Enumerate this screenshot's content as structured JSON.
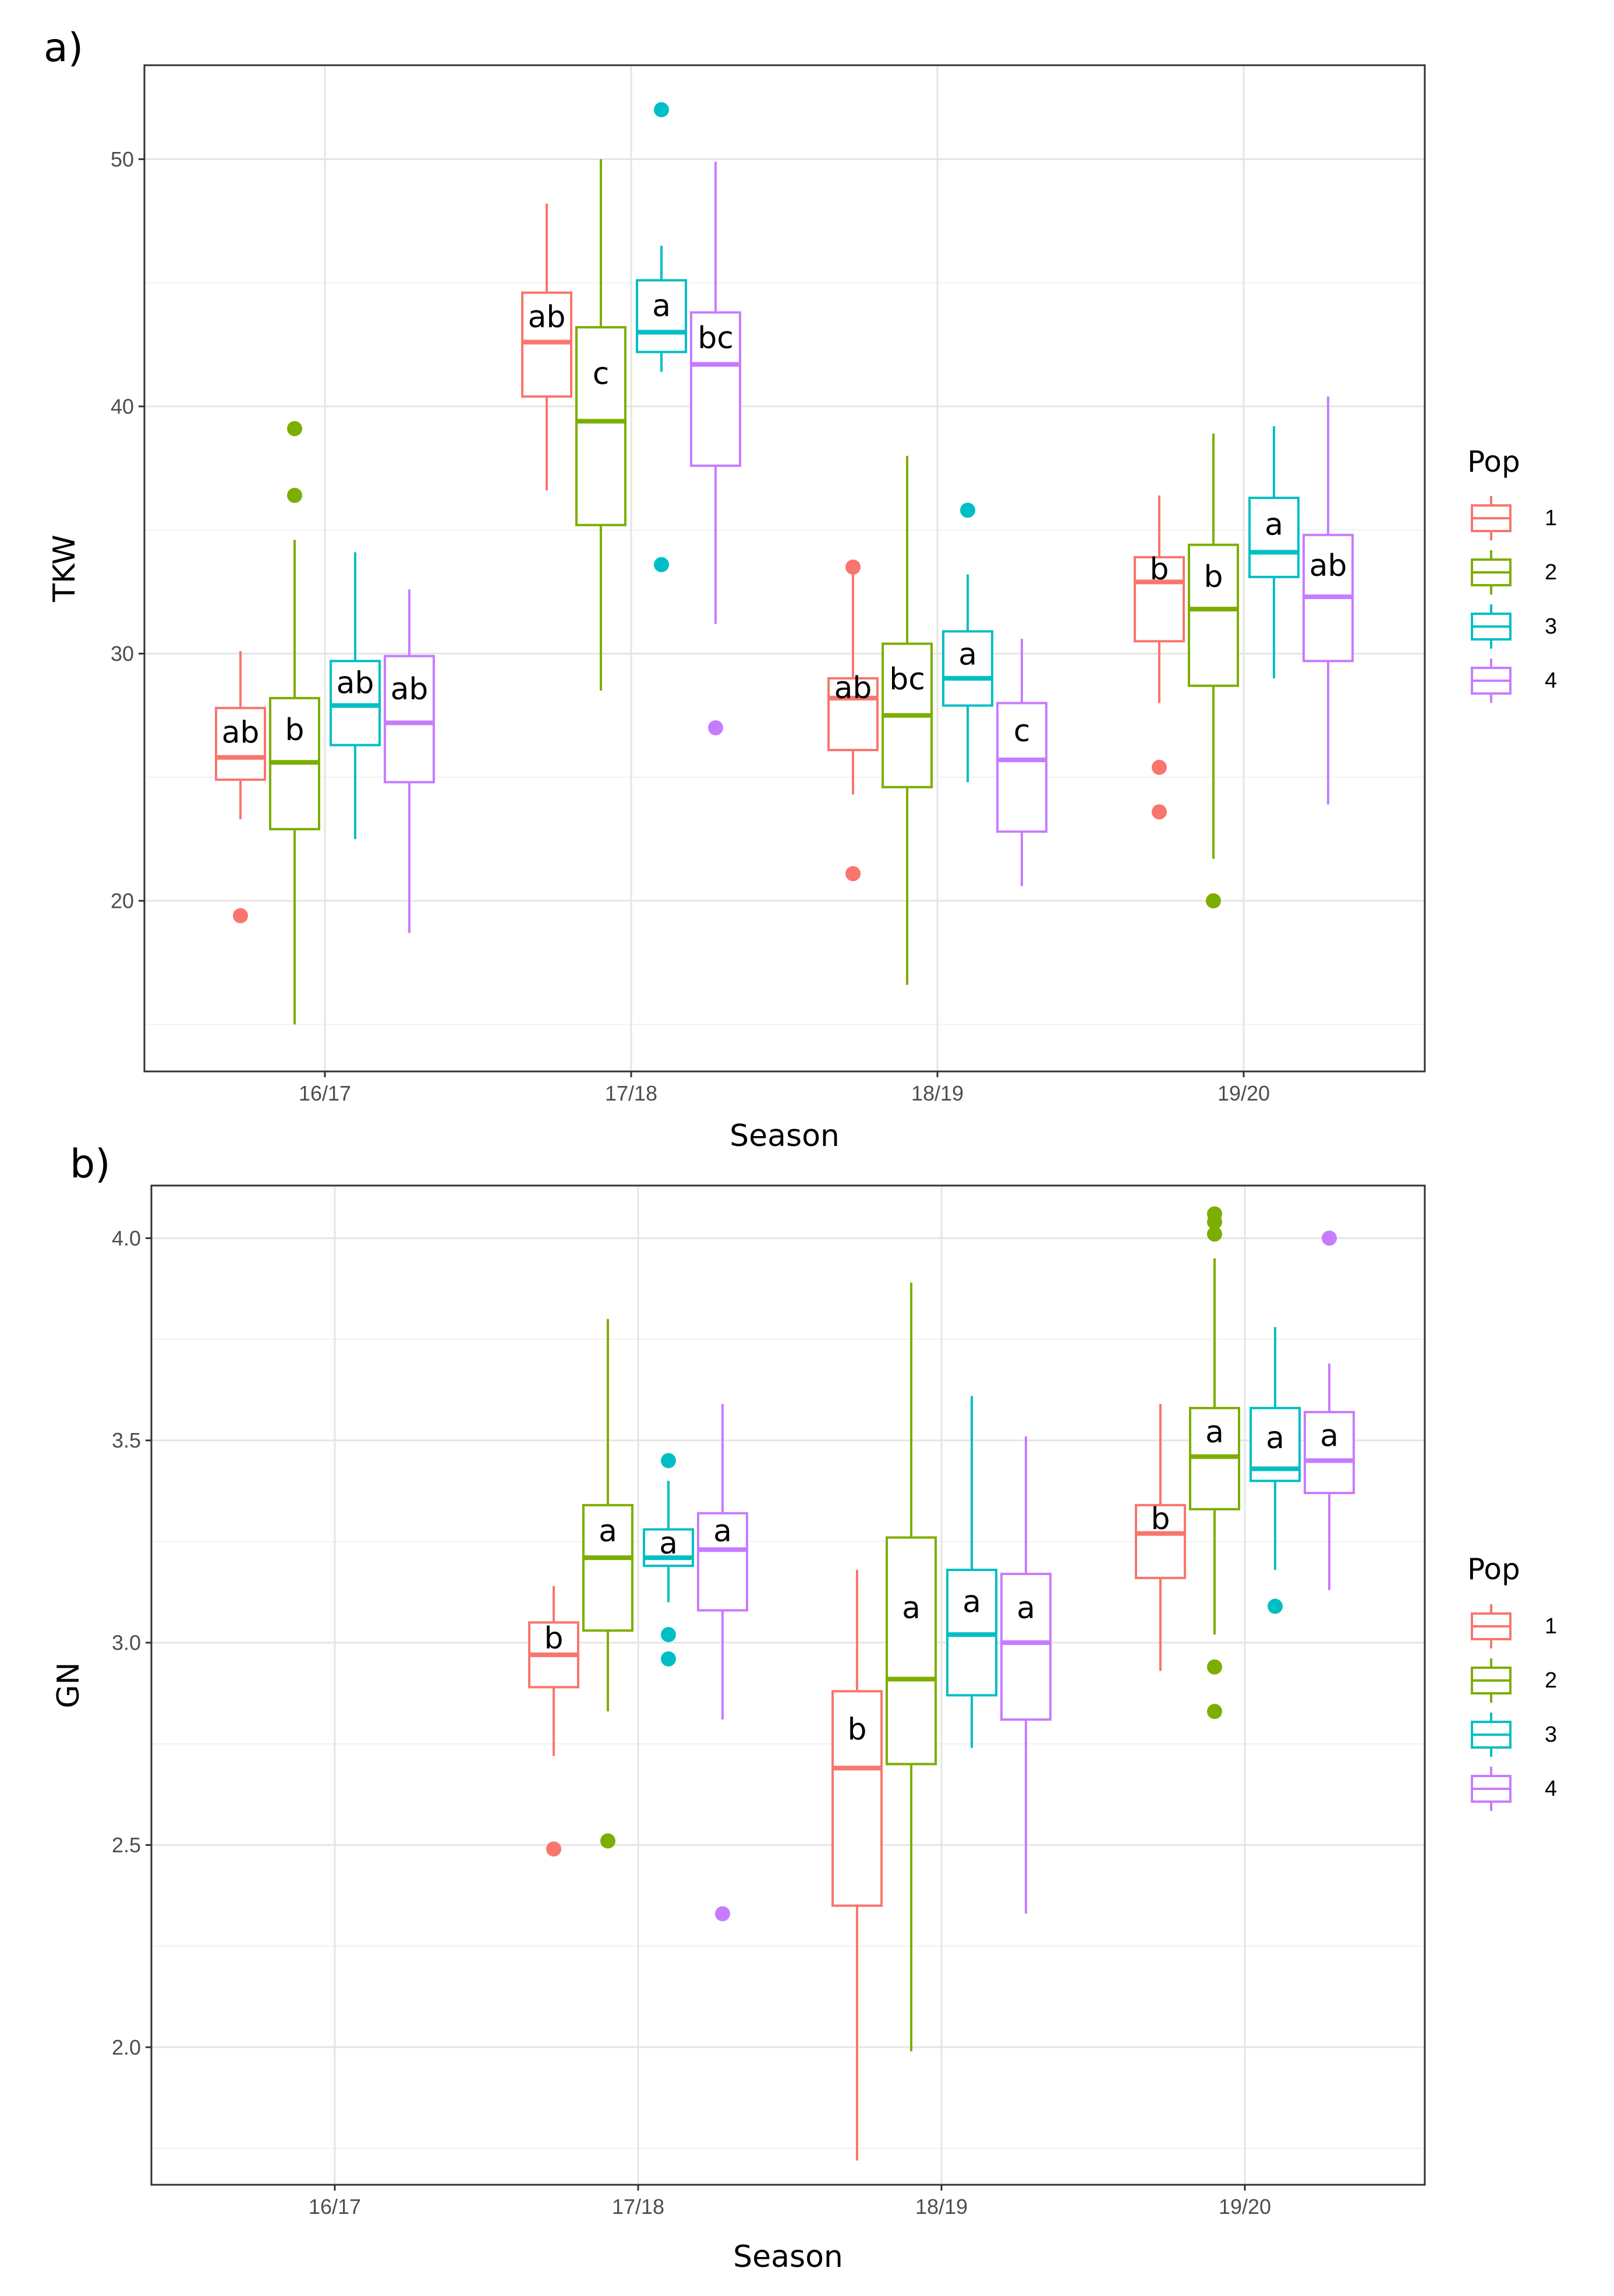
{
  "chart_data": [
    {
      "type": "boxplot",
      "panel": "a)",
      "xlabel": "Season",
      "ylabel": "TKW",
      "ylim": [
        13.1,
        53.8
      ],
      "yticks": [
        20,
        30,
        40,
        50
      ],
      "categories": [
        "16/17",
        "17/18",
        "18/19",
        "19/20"
      ],
      "legend": {
        "title": "Pop",
        "entries": [
          "1",
          "2",
          "3",
          "4"
        ],
        "position": "right"
      },
      "series": [
        {
          "name": "1",
          "color": "#F8766D",
          "boxes": [
            {
              "season": "16/17",
              "min": 23.3,
              "q1": 24.9,
              "median": 25.8,
              "q3": 27.8,
              "max": 30.1,
              "outliers": [
                19.4
              ],
              "letter": "ab"
            },
            {
              "season": "17/18",
              "min": 36.6,
              "q1": 40.4,
              "median": 42.6,
              "q3": 44.6,
              "max": 48.2,
              "outliers": [],
              "letter": "ab"
            },
            {
              "season": "18/19",
              "min": 24.3,
              "q1": 26.1,
              "median": 28.2,
              "q3": 29.0,
              "max": 33.4,
              "outliers": [
                21.1,
                33.5
              ],
              "letter": "ab"
            },
            {
              "season": "19/20",
              "min": 28.0,
              "q1": 30.5,
              "median": 32.9,
              "q3": 33.9,
              "max": 36.4,
              "outliers": [
                25.4,
                23.6
              ],
              "letter": "b"
            }
          ]
        },
        {
          "name": "2",
          "color": "#7CAE00",
          "boxes": [
            {
              "season": "16/17",
              "min": 15.0,
              "q1": 22.9,
              "median": 25.6,
              "q3": 28.2,
              "max": 34.6,
              "outliers": [
                39.1,
                36.4
              ],
              "letter": "b"
            },
            {
              "season": "17/18",
              "min": 28.5,
              "q1": 35.2,
              "median": 39.4,
              "q3": 43.2,
              "max": 50.0,
              "outliers": [],
              "letter": "c"
            },
            {
              "season": "18/19",
              "min": 16.6,
              "q1": 24.6,
              "median": 27.5,
              "q3": 30.4,
              "max": 38.0,
              "outliers": [],
              "letter": "bc"
            },
            {
              "season": "19/20",
              "min": 21.7,
              "q1": 28.7,
              "median": 31.8,
              "q3": 34.4,
              "max": 38.9,
              "outliers": [
                20.0
              ],
              "letter": "b"
            }
          ]
        },
        {
          "name": "3",
          "color": "#00BFC4",
          "boxes": [
            {
              "season": "16/17",
              "min": 22.5,
              "q1": 26.3,
              "median": 27.9,
              "q3": 29.7,
              "max": 34.1,
              "outliers": [],
              "letter": "ab"
            },
            {
              "season": "17/18",
              "min": 41.4,
              "q1": 42.2,
              "median": 43.0,
              "q3": 45.1,
              "max": 46.5,
              "outliers": [
                52.0,
                33.6
              ],
              "letter": "a"
            },
            {
              "season": "18/19",
              "min": 24.8,
              "q1": 27.9,
              "median": 29.0,
              "q3": 30.9,
              "max": 33.2,
              "outliers": [
                35.8
              ],
              "letter": "a"
            },
            {
              "season": "19/20",
              "min": 29.0,
              "q1": 33.1,
              "median": 34.1,
              "q3": 36.3,
              "max": 39.2,
              "outliers": [],
              "letter": "a"
            }
          ]
        },
        {
          "name": "4",
          "color": "#C77CFF",
          "boxes": [
            {
              "season": "16/17",
              "min": 18.7,
              "q1": 24.8,
              "median": 27.2,
              "q3": 29.9,
              "max": 32.6,
              "outliers": [],
              "letter": "ab"
            },
            {
              "season": "17/18",
              "min": 31.2,
              "q1": 37.6,
              "median": 41.7,
              "q3": 43.8,
              "max": 49.9,
              "outliers": [
                27.0
              ],
              "letter": "bc"
            },
            {
              "season": "18/19",
              "min": 20.6,
              "q1": 22.8,
              "median": 25.7,
              "q3": 28.0,
              "max": 30.6,
              "outliers": [],
              "letter": "c"
            },
            {
              "season": "19/20",
              "min": 23.9,
              "q1": 29.7,
              "median": 32.3,
              "q3": 34.8,
              "max": 40.4,
              "outliers": [],
              "letter": "ab"
            }
          ]
        }
      ]
    },
    {
      "type": "boxplot",
      "panel": "b)",
      "xlabel": "Season",
      "ylabel": "GN",
      "ylim": [
        1.66,
        4.13
      ],
      "yticks": [
        "2.0",
        "2.5",
        "3.0",
        "3.5",
        "4.0"
      ],
      "categories": [
        "16/17",
        "17/18",
        "18/19",
        "19/20"
      ],
      "legend": {
        "title": "Pop",
        "entries": [
          "1",
          "2",
          "3",
          "4"
        ],
        "position": "right"
      },
      "series": [
        {
          "name": "1",
          "color": "#F8766D",
          "boxes": [
            {
              "season": "17/18",
              "min": 2.72,
              "q1": 2.89,
              "median": 2.97,
              "q3": 3.05,
              "max": 3.14,
              "outliers": [
                2.49
              ],
              "letter": "b"
            },
            {
              "season": "18/19",
              "min": 1.72,
              "q1": 2.35,
              "median": 2.69,
              "q3": 2.88,
              "max": 3.18,
              "outliers": [],
              "letter": "b"
            },
            {
              "season": "19/20",
              "min": 2.93,
              "q1": 3.16,
              "median": 3.27,
              "q3": 3.34,
              "max": 3.59,
              "outliers": [],
              "letter": "b"
            }
          ]
        },
        {
          "name": "2",
          "color": "#7CAE00",
          "boxes": [
            {
              "season": "17/18",
              "min": 2.83,
              "q1": 3.03,
              "median": 3.21,
              "q3": 3.34,
              "max": 3.8,
              "outliers": [
                2.51
              ],
              "letter": "a"
            },
            {
              "season": "18/19",
              "min": 1.99,
              "q1": 2.7,
              "median": 2.91,
              "q3": 3.26,
              "max": 3.89,
              "outliers": [],
              "letter": "a"
            },
            {
              "season": "19/20",
              "min": 3.02,
              "q1": 3.33,
              "median": 3.46,
              "q3": 3.58,
              "max": 3.95,
              "outliers": [
                4.06,
                4.04,
                4.01,
                2.94,
                2.83
              ],
              "letter": "a"
            }
          ]
        },
        {
          "name": "3",
          "color": "#00BFC4",
          "boxes": [
            {
              "season": "17/18",
              "min": 3.1,
              "q1": 3.19,
              "median": 3.21,
              "q3": 3.28,
              "max": 3.4,
              "outliers": [
                3.45,
                3.02,
                2.96
              ],
              "letter": "a"
            },
            {
              "season": "18/19",
              "min": 2.74,
              "q1": 2.87,
              "median": 3.02,
              "q3": 3.18,
              "max": 3.61,
              "outliers": [],
              "letter": "a"
            },
            {
              "season": "19/20",
              "min": 3.18,
              "q1": 3.4,
              "median": 3.43,
              "q3": 3.58,
              "max": 3.78,
              "outliers": [
                3.09
              ],
              "letter": "a"
            }
          ]
        },
        {
          "name": "4",
          "color": "#C77CFF",
          "boxes": [
            {
              "season": "17/18",
              "min": 2.81,
              "q1": 3.08,
              "median": 3.23,
              "q3": 3.32,
              "max": 3.59,
              "outliers": [
                2.33
              ],
              "letter": "a"
            },
            {
              "season": "18/19",
              "min": 2.33,
              "q1": 2.81,
              "median": 3.0,
              "q3": 3.17,
              "max": 3.51,
              "outliers": [],
              "letter": "a"
            },
            {
              "season": "19/20",
              "min": 3.13,
              "q1": 3.37,
              "median": 3.45,
              "q3": 3.57,
              "max": 3.69,
              "outliers": [
                4.0
              ],
              "letter": "a"
            }
          ]
        }
      ]
    }
  ]
}
